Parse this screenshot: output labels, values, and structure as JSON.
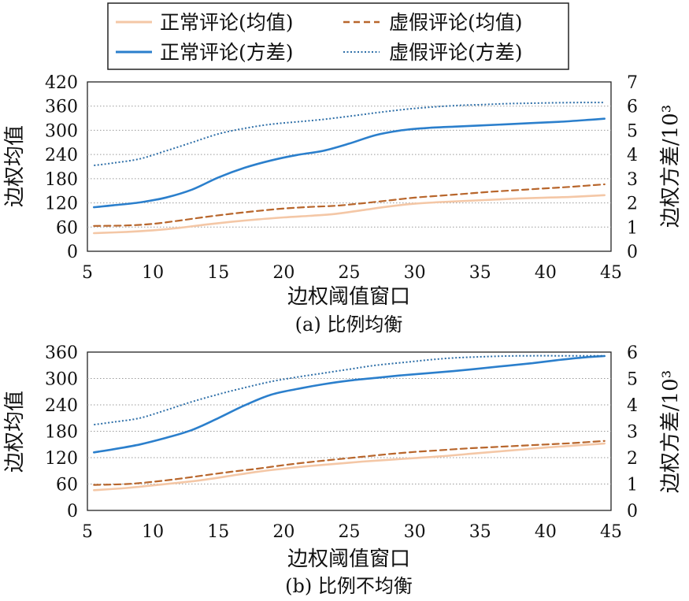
{
  "legend": {
    "items": [
      {
        "label": "正常评论(均值)",
        "color": "#f4c7a6",
        "style": "solid"
      },
      {
        "label": "虚假评论(均值)",
        "color": "#b8662c",
        "style": "dashed"
      },
      {
        "label": "正常评论(方差)",
        "color": "#2b7fcc",
        "style": "solid"
      },
      {
        "label": "虚假评论(方差)",
        "color": "#2e6fa8",
        "style": "dotted"
      }
    ]
  },
  "chart_data": [
    {
      "type": "line",
      "caption": "(a) 比例均衡",
      "xlabel": "边权阈值窗口",
      "ylabel": "边权均值",
      "y2label": "边权方差/10³",
      "xlim": [
        5,
        45
      ],
      "ylim": [
        0,
        420
      ],
      "y2lim": [
        0,
        7
      ],
      "xticks": [
        "5",
        "10",
        "15",
        "20",
        "25",
        "30",
        "35",
        "40",
        "45"
      ],
      "yticks": [
        "0",
        "60",
        "120",
        "180",
        "240",
        "300",
        "360",
        "420"
      ],
      "y2ticks": [
        "0",
        "1",
        "2",
        "3",
        "4",
        "5",
        "6",
        "7"
      ],
      "grid": true,
      "series": [
        {
          "name": "正常评论(均值)",
          "axis": "left",
          "x": [
            5.5,
            8,
            10,
            12,
            14,
            16,
            18,
            20,
            22,
            24,
            26,
            28,
            30,
            32,
            34,
            36,
            38,
            40,
            42,
            44.5
          ],
          "y": [
            45,
            48,
            52,
            58,
            66,
            73,
            79,
            84,
            88,
            93,
            102,
            111,
            118,
            122,
            125,
            128,
            131,
            133,
            135,
            139
          ]
        },
        {
          "name": "虚假评论(均值)",
          "axis": "left",
          "x": [
            5.5,
            8,
            10,
            12,
            14,
            16,
            18,
            20,
            22,
            24,
            26,
            28,
            30,
            32,
            34,
            36,
            38,
            40,
            42,
            44.5
          ],
          "y": [
            63,
            64,
            68,
            76,
            85,
            93,
            100,
            106,
            110,
            113,
            119,
            126,
            133,
            138,
            143,
            148,
            152,
            156,
            160,
            166
          ]
        },
        {
          "name": "正常评论(方差)",
          "axis": "right",
          "x": [
            5.5,
            7,
            9,
            11,
            13,
            15,
            17,
            19,
            21,
            23,
            25,
            27,
            29,
            31,
            33,
            35,
            37,
            39,
            41,
            43,
            44.5
          ],
          "y": [
            1.82,
            1.9,
            2.02,
            2.22,
            2.55,
            3.05,
            3.45,
            3.75,
            3.98,
            4.15,
            4.45,
            4.8,
            5.0,
            5.1,
            5.15,
            5.2,
            5.25,
            5.3,
            5.35,
            5.42,
            5.48
          ]
        },
        {
          "name": "虚假评论(方差)",
          "axis": "right",
          "x": [
            5.5,
            7,
            9,
            11,
            13,
            15,
            17,
            19,
            21,
            23,
            25,
            27,
            29,
            31,
            33,
            35,
            37,
            39,
            41,
            43,
            44.5
          ],
          "y": [
            3.55,
            3.65,
            3.82,
            4.15,
            4.5,
            4.85,
            5.08,
            5.25,
            5.35,
            5.45,
            5.58,
            5.72,
            5.85,
            5.95,
            6.02,
            6.06,
            6.1,
            6.12,
            6.14,
            6.15,
            6.15
          ]
        }
      ]
    },
    {
      "type": "line",
      "caption": "(b) 比例不均衡",
      "xlabel": "边权阈值窗口",
      "ylabel": "边权均值",
      "y2label": "边权方差/10³",
      "xlim": [
        5,
        45
      ],
      "ylim": [
        0,
        360
      ],
      "y2lim": [
        0,
        6
      ],
      "xticks": [
        "5",
        "10",
        "15",
        "20",
        "25",
        "30",
        "35",
        "40",
        "45"
      ],
      "yticks": [
        "0",
        "60",
        "120",
        "180",
        "240",
        "300",
        "360"
      ],
      "y2ticks": [
        "0",
        "1",
        "2",
        "3",
        "4",
        "5",
        "6"
      ],
      "grid": true,
      "series": [
        {
          "name": "正常评论(均值)",
          "axis": "left",
          "x": [
            5.5,
            8,
            10,
            12,
            14,
            16,
            18,
            20,
            22,
            24,
            26,
            28,
            30,
            32,
            34,
            36,
            38,
            40,
            42,
            44.5
          ],
          "y": [
            46,
            51,
            57,
            63,
            70,
            79,
            88,
            95,
            101,
            106,
            111,
            115,
            119,
            123,
            128,
            133,
            138,
            143,
            147,
            152
          ]
        },
        {
          "name": "虚假评论(均值)",
          "axis": "left",
          "x": [
            5.5,
            8,
            10,
            12,
            14,
            16,
            18,
            20,
            22,
            24,
            26,
            28,
            30,
            32,
            34,
            36,
            38,
            40,
            42,
            44.5
          ],
          "y": [
            58,
            60,
            65,
            72,
            80,
            88,
            95,
            103,
            110,
            116,
            122,
            128,
            133,
            137,
            141,
            144,
            147,
            150,
            153,
            158
          ]
        },
        {
          "name": "正常评论(方差)",
          "axis": "right",
          "x": [
            5.5,
            7,
            9,
            11,
            13,
            15,
            17,
            19,
            21,
            23,
            25,
            27,
            29,
            31,
            33,
            35,
            37,
            39,
            41,
            43,
            44.5
          ],
          "y": [
            2.2,
            2.32,
            2.5,
            2.75,
            3.05,
            3.5,
            3.98,
            4.38,
            4.6,
            4.78,
            4.92,
            5.02,
            5.12,
            5.2,
            5.28,
            5.38,
            5.48,
            5.58,
            5.7,
            5.8,
            5.85
          ]
        },
        {
          "name": "虚假评论(方差)",
          "axis": "right",
          "x": [
            5.5,
            7,
            9,
            11,
            13,
            15,
            17,
            19,
            21,
            23,
            25,
            27,
            29,
            31,
            33,
            35,
            37,
            39,
            41,
            43,
            44.5
          ],
          "y": [
            3.25,
            3.35,
            3.5,
            3.8,
            4.12,
            4.4,
            4.65,
            4.88,
            5.05,
            5.2,
            5.35,
            5.5,
            5.6,
            5.7,
            5.78,
            5.82,
            5.85,
            5.86,
            5.86,
            5.86,
            5.86
          ]
        }
      ]
    }
  ]
}
